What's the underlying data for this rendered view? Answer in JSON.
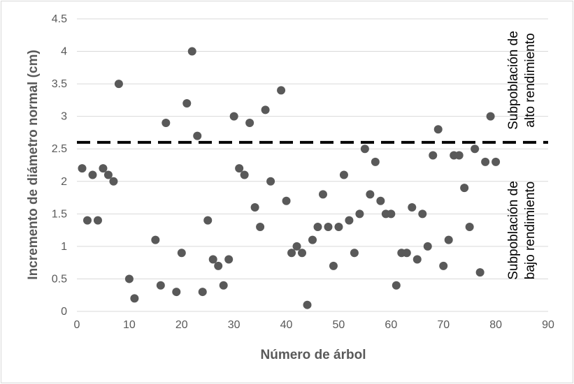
{
  "chart_data": {
    "type": "scatter",
    "title": "",
    "xlabel": "Número de árbol",
    "ylabel": "Incremento de diámetro normal (cm)",
    "xlim": [
      0,
      90
    ],
    "ylim": [
      0,
      4.5
    ],
    "x_ticks": [
      "0",
      "10",
      "20",
      "30",
      "40",
      "50",
      "60",
      "70",
      "80",
      "90"
    ],
    "y_ticks": [
      "0",
      "0.5",
      "1",
      "1.5",
      "2",
      "2.5",
      "3",
      "3.5",
      "4",
      "4.5"
    ],
    "grid": "horizontal",
    "marker_color": "#595959",
    "threshold": {
      "y": 2.6,
      "style": "dashed",
      "color": "#000000"
    },
    "annotations": [
      {
        "line1": "Subpoblación de",
        "line2": "alto rendimiento"
      },
      {
        "line1": "Subpoblación de",
        "line2": "bajo rendimiento"
      }
    ],
    "points": [
      [
        1,
        2.2
      ],
      [
        2,
        1.4
      ],
      [
        3,
        2.1
      ],
      [
        4,
        1.4
      ],
      [
        5,
        2.2
      ],
      [
        6,
        2.1
      ],
      [
        7,
        2.0
      ],
      [
        8,
        3.5
      ],
      [
        10,
        0.5
      ],
      [
        11,
        0.2
      ],
      [
        15,
        1.1
      ],
      [
        16,
        0.4
      ],
      [
        17,
        2.9
      ],
      [
        19,
        0.3
      ],
      [
        20,
        0.9
      ],
      [
        21,
        3.2
      ],
      [
        22,
        4.0
      ],
      [
        23,
        2.7
      ],
      [
        24,
        0.3
      ],
      [
        25,
        1.4
      ],
      [
        26,
        0.8
      ],
      [
        27,
        0.7
      ],
      [
        28,
        0.4
      ],
      [
        29,
        0.8
      ],
      [
        30,
        3.0
      ],
      [
        31,
        2.2
      ],
      [
        32,
        2.1
      ],
      [
        33,
        2.9
      ],
      [
        34,
        1.6
      ],
      [
        35,
        1.3
      ],
      [
        36,
        3.1
      ],
      [
        37,
        2.0
      ],
      [
        39,
        3.4
      ],
      [
        40,
        1.7
      ],
      [
        41,
        0.9
      ],
      [
        42,
        1.0
      ],
      [
        43,
        0.9
      ],
      [
        44,
        0.1
      ],
      [
        45,
        1.1
      ],
      [
        46,
        1.3
      ],
      [
        47,
        1.8
      ],
      [
        48,
        1.3
      ],
      [
        49,
        0.7
      ],
      [
        50,
        1.3
      ],
      [
        51,
        2.1
      ],
      [
        52,
        1.4
      ],
      [
        53,
        0.9
      ],
      [
        54,
        1.5
      ],
      [
        55,
        2.5
      ],
      [
        56,
        1.8
      ],
      [
        57,
        2.3
      ],
      [
        58,
        1.7
      ],
      [
        59,
        1.5
      ],
      [
        60,
        1.5
      ],
      [
        61,
        0.4
      ],
      [
        62,
        0.9
      ],
      [
        63,
        0.9
      ],
      [
        64,
        1.6
      ],
      [
        65,
        0.8
      ],
      [
        66,
        1.5
      ],
      [
        67,
        1.0
      ],
      [
        68,
        2.4
      ],
      [
        69,
        2.8
      ],
      [
        70,
        0.7
      ],
      [
        71,
        1.1
      ],
      [
        72,
        2.4
      ],
      [
        73,
        2.4
      ],
      [
        74,
        1.9
      ],
      [
        75,
        1.3
      ],
      [
        76,
        2.5
      ],
      [
        77,
        0.6
      ],
      [
        78,
        2.3
      ],
      [
        79,
        3.0
      ],
      [
        80,
        2.3
      ]
    ]
  }
}
